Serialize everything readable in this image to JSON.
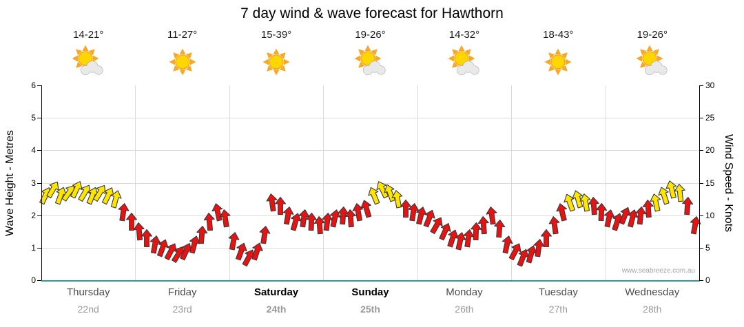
{
  "page": {
    "title": "7 day wind & wave forecast for Hawthorn",
    "watermark": "www.seabreeze.com.au"
  },
  "days": [
    {
      "name": "Thursday",
      "date": "22nd",
      "temp": "14-21°",
      "icon": "sun-cloud",
      "emphasis": false
    },
    {
      "name": "Friday",
      "date": "23rd",
      "temp": "11-27°",
      "icon": "sun",
      "emphasis": false
    },
    {
      "name": "Saturday",
      "date": "24th",
      "temp": "15-39°",
      "icon": "sun",
      "emphasis": true
    },
    {
      "name": "Sunday",
      "date": "25th",
      "temp": "19-26°",
      "icon": "sun-cloud",
      "emphasis": true
    },
    {
      "name": "Monday",
      "date": "26th",
      "temp": "14-32°",
      "icon": "sun-cloud",
      "emphasis": false
    },
    {
      "name": "Tuesday",
      "date": "27th",
      "temp": "18-43°",
      "icon": "sun",
      "emphasis": false
    },
    {
      "name": "Wednesday",
      "date": "28th",
      "temp": "19-26°",
      "icon": "sun-cloud",
      "emphasis": false
    }
  ],
  "axes": {
    "left_label": "Wave Height - Metres",
    "right_label": "Wind Speed - Knots",
    "left_ticks": [
      "0",
      "1",
      "2",
      "3",
      "4",
      "5",
      "6"
    ],
    "right_ticks": [
      "0",
      "5",
      "10",
      "15",
      "20",
      "25",
      "30"
    ],
    "left_range": [
      0,
      6
    ],
    "right_range": [
      0,
      30
    ]
  },
  "colors": {
    "arrow_yellow": "#FFE500",
    "arrow_red": "#E81212",
    "arrow_outline": "#3A3A3A",
    "axis_line": "#000000",
    "x_axis_teal": "#2E9B9B",
    "gridline": "#DBDBDB",
    "day_name": "#4D4D4D",
    "day_name_emphasis": "#000000",
    "day_date": "#999999",
    "watermark_text": "#A6A6A6"
  },
  "chart_data": {
    "type": "wind-arrows",
    "x_axis": "time, 12 intervals per day across 7 days",
    "y_axis_right": "wind speed in knots (arrow vertical position)",
    "y_axis_left": "wave height in metres (shared scale 0-6 m = 0-30 kn)",
    "ylim_knots": [
      0,
      30
    ],
    "arrow_color_key": {
      "Y": "yellow (moderate)",
      "R": "red (fresh/strong)"
    },
    "days": [
      {
        "day": "Thursday",
        "speeds_knots": [
          13,
          14,
          13,
          13.5,
          14,
          13.5,
          13,
          13.5,
          13,
          12.5,
          10.5,
          9
        ],
        "colors": [
          "Y",
          "Y",
          "Y",
          "Y",
          "Y",
          "Y",
          "Y",
          "Y",
          "Y",
          "Y",
          "R",
          "R"
        ],
        "angles_deg": [
          25,
          30,
          20,
          35,
          25,
          30,
          22,
          32,
          26,
          15,
          8,
          0
        ]
      },
      {
        "day": "Friday",
        "speeds_knots": [
          7.5,
          6.5,
          5.5,
          5,
          4.5,
          4,
          4.5,
          5.5,
          7,
          9,
          10.5,
          9.5
        ],
        "colors": [
          "R",
          "R",
          "R",
          "R",
          "R",
          "R",
          "R",
          "R",
          "R",
          "R",
          "R",
          "R"
        ],
        "angles_deg": [
          -5,
          0,
          10,
          20,
          28,
          32,
          25,
          15,
          5,
          -5,
          -12,
          -8
        ]
      },
      {
        "day": "Saturday",
        "speeds_knots": [
          6,
          4.5,
          3.5,
          4.5,
          7,
          12,
          11.5,
          10,
          9,
          9.5,
          9,
          8.5
        ],
        "colors": [
          "R",
          "R",
          "R",
          "R",
          "R",
          "R",
          "R",
          "R",
          "R",
          "R",
          "R",
          "R"
        ],
        "angles_deg": [
          10,
          20,
          28,
          18,
          8,
          -8,
          0,
          10,
          16,
          8,
          2,
          -4
        ]
      },
      {
        "day": "Sunday",
        "speeds_knots": [
          9,
          9.5,
          10,
          9.5,
          10.5,
          11,
          13,
          14,
          13.5,
          12.5,
          11,
          10.5
        ],
        "colors": [
          "R",
          "R",
          "R",
          "R",
          "R",
          "R",
          "Y",
          "Y",
          "Y",
          "Y",
          "R",
          "R"
        ],
        "angles_deg": [
          6,
          12,
          4,
          -4,
          -10,
          -16,
          -22,
          -26,
          -20,
          -10,
          0,
          8
        ]
      },
      {
        "day": "Monday",
        "speeds_knots": [
          10,
          9.5,
          8.5,
          7.5,
          6.5,
          6,
          6.5,
          7.5,
          8.5,
          10,
          8,
          5.5
        ],
        "colors": [
          "R",
          "R",
          "R",
          "R",
          "R",
          "R",
          "R",
          "R",
          "R",
          "R",
          "R",
          "R"
        ],
        "angles_deg": [
          14,
          22,
          30,
          24,
          18,
          12,
          8,
          2,
          -4,
          -8,
          4,
          12
        ]
      },
      {
        "day": "Tuesday",
        "speeds_knots": [
          4.5,
          3.5,
          4,
          5,
          6.5,
          8.5,
          10.5,
          12,
          12.5,
          12,
          11.5,
          10.5
        ],
        "colors": [
          "R",
          "R",
          "R",
          "R",
          "R",
          "R",
          "R",
          "Y",
          "Y",
          "Y",
          "R",
          "R"
        ],
        "angles_deg": [
          28,
          22,
          16,
          8,
          0,
          -8,
          -14,
          -20,
          -16,
          -10,
          -4,
          2
        ]
      },
      {
        "day": "Wednesday",
        "speeds_knots": [
          9.5,
          9,
          10,
          9.5,
          10,
          11,
          12,
          13,
          14,
          13.5,
          11.5,
          8.5
        ],
        "colors": [
          "R",
          "R",
          "R",
          "R",
          "R",
          "R",
          "Y",
          "Y",
          "Y",
          "Y",
          "R",
          "R"
        ],
        "angles_deg": [
          12,
          18,
          22,
          14,
          6,
          -4,
          -12,
          -18,
          -14,
          -6,
          4,
          10
        ]
      }
    ]
  }
}
